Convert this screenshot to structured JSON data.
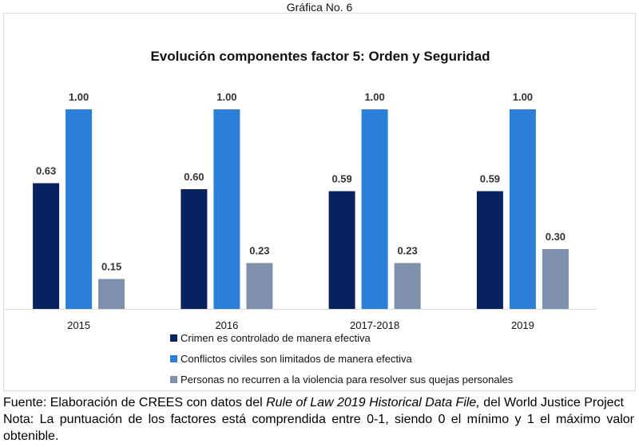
{
  "caption": "Gráfica No. 6",
  "chart_data": {
    "type": "bar",
    "title": "Evolución componentes factor 5: Orden y Seguridad",
    "categories": [
      "2015",
      "2016",
      "2017-2018",
      "2019"
    ],
    "series": [
      {
        "name": "Crimen es controlado de manera efectiva",
        "color": "#0A2160",
        "values": [
          0.63,
          0.6,
          0.59,
          0.59
        ]
      },
      {
        "name": "Conflictos civiles son limitados de manera efectiva",
        "color": "#2A7FD6",
        "values": [
          1.0,
          1.0,
          1.0,
          1.0
        ]
      },
      {
        "name": "Personas no recurren a la violencia para resolver sus quejas personales",
        "color": "#7F90AD",
        "values": [
          0.15,
          0.23,
          0.23,
          0.3
        ]
      }
    ],
    "data_labels": [
      [
        "0.63",
        "0.60",
        "0.59",
        "0.59"
      ],
      [
        "1.00",
        "1.00",
        "1.00",
        "1.00"
      ],
      [
        "0.15",
        "0.23",
        "0.23",
        "0.30"
      ]
    ],
    "xlabel": "",
    "ylabel": "",
    "ylim": [
      0,
      1
    ],
    "grid": false,
    "y_axis_visible": false,
    "legend_position": "bottom"
  },
  "footer": {
    "source_prefix": "Fuente: Elaboración de CREES con datos del ",
    "source_italic": "Rule of Law 2019 Historical Data File,",
    "source_suffix": " del World Justice Project",
    "note": "Nota: La puntuación de los factores está comprendida entre 0-1, siendo 0 el mínimo y 1 el máximo valor obtenible."
  }
}
